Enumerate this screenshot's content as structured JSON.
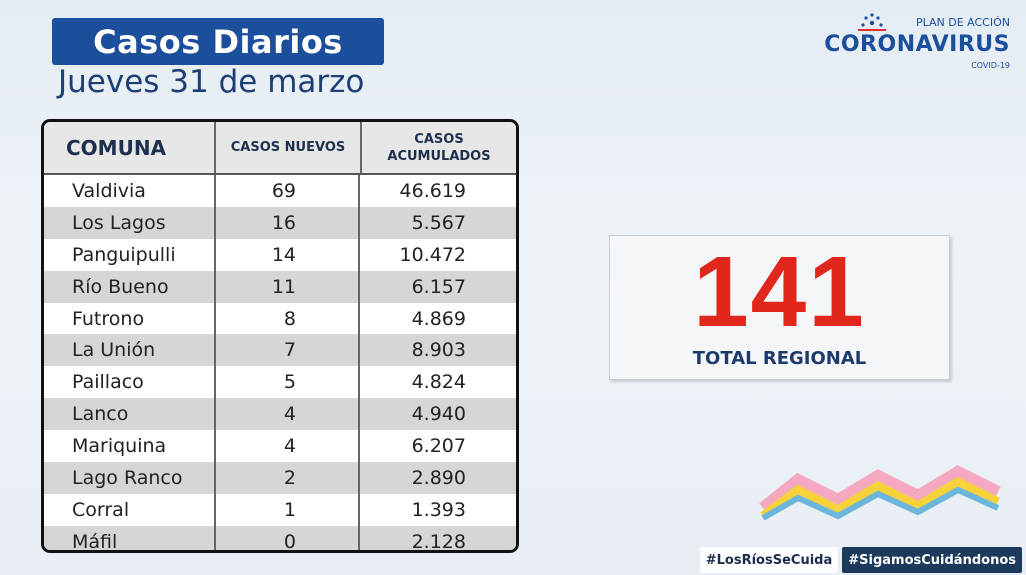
{
  "header": {
    "title": "Casos Diarios",
    "date": "Jueves 31 de marzo"
  },
  "logo": {
    "top_line": "PLAN DE ACCIÓN",
    "main": "CORONAVIRUS",
    "bottom_line": "COVID-19"
  },
  "table": {
    "columns": [
      "COMUNA",
      "CASOS NUEVOS",
      "CASOS ACUMULADOS"
    ],
    "rows": [
      {
        "comuna": "Valdivia",
        "nuevos": "69",
        "acumulados": "46.619"
      },
      {
        "comuna": "Los Lagos",
        "nuevos": "16",
        "acumulados": "5.567"
      },
      {
        "comuna": "Panguipulli",
        "nuevos": "14",
        "acumulados": "10.472"
      },
      {
        "comuna": "Río Bueno",
        "nuevos": "11",
        "acumulados": "6.157"
      },
      {
        "comuna": "Futrono",
        "nuevos": "8",
        "acumulados": "4.869"
      },
      {
        "comuna": "La Unión",
        "nuevos": "7",
        "acumulados": "8.903"
      },
      {
        "comuna": "Paillaco",
        "nuevos": "5",
        "acumulados": "4.824"
      },
      {
        "comuna": "Lanco",
        "nuevos": "4",
        "acumulados": "4.940"
      },
      {
        "comuna": "Mariquina",
        "nuevos": "4",
        "acumulados": "6.207"
      },
      {
        "comuna": "Lago Ranco",
        "nuevos": "2",
        "acumulados": "2.890"
      },
      {
        "comuna": "Corral",
        "nuevos": "1",
        "acumulados": "1.393"
      },
      {
        "comuna": "Máfil",
        "nuevos": "0",
        "acumulados": "2.128"
      }
    ]
  },
  "total": {
    "value": "141",
    "label": "TOTAL REGIONAL"
  },
  "hashtags": [
    "#LosRíosSeCuida",
    "#SigamosCuidándonos"
  ],
  "colors": {
    "brand_blue": "#1b4e9b",
    "total_red": "#e1261c",
    "header_gray": "#e7e7e7"
  }
}
